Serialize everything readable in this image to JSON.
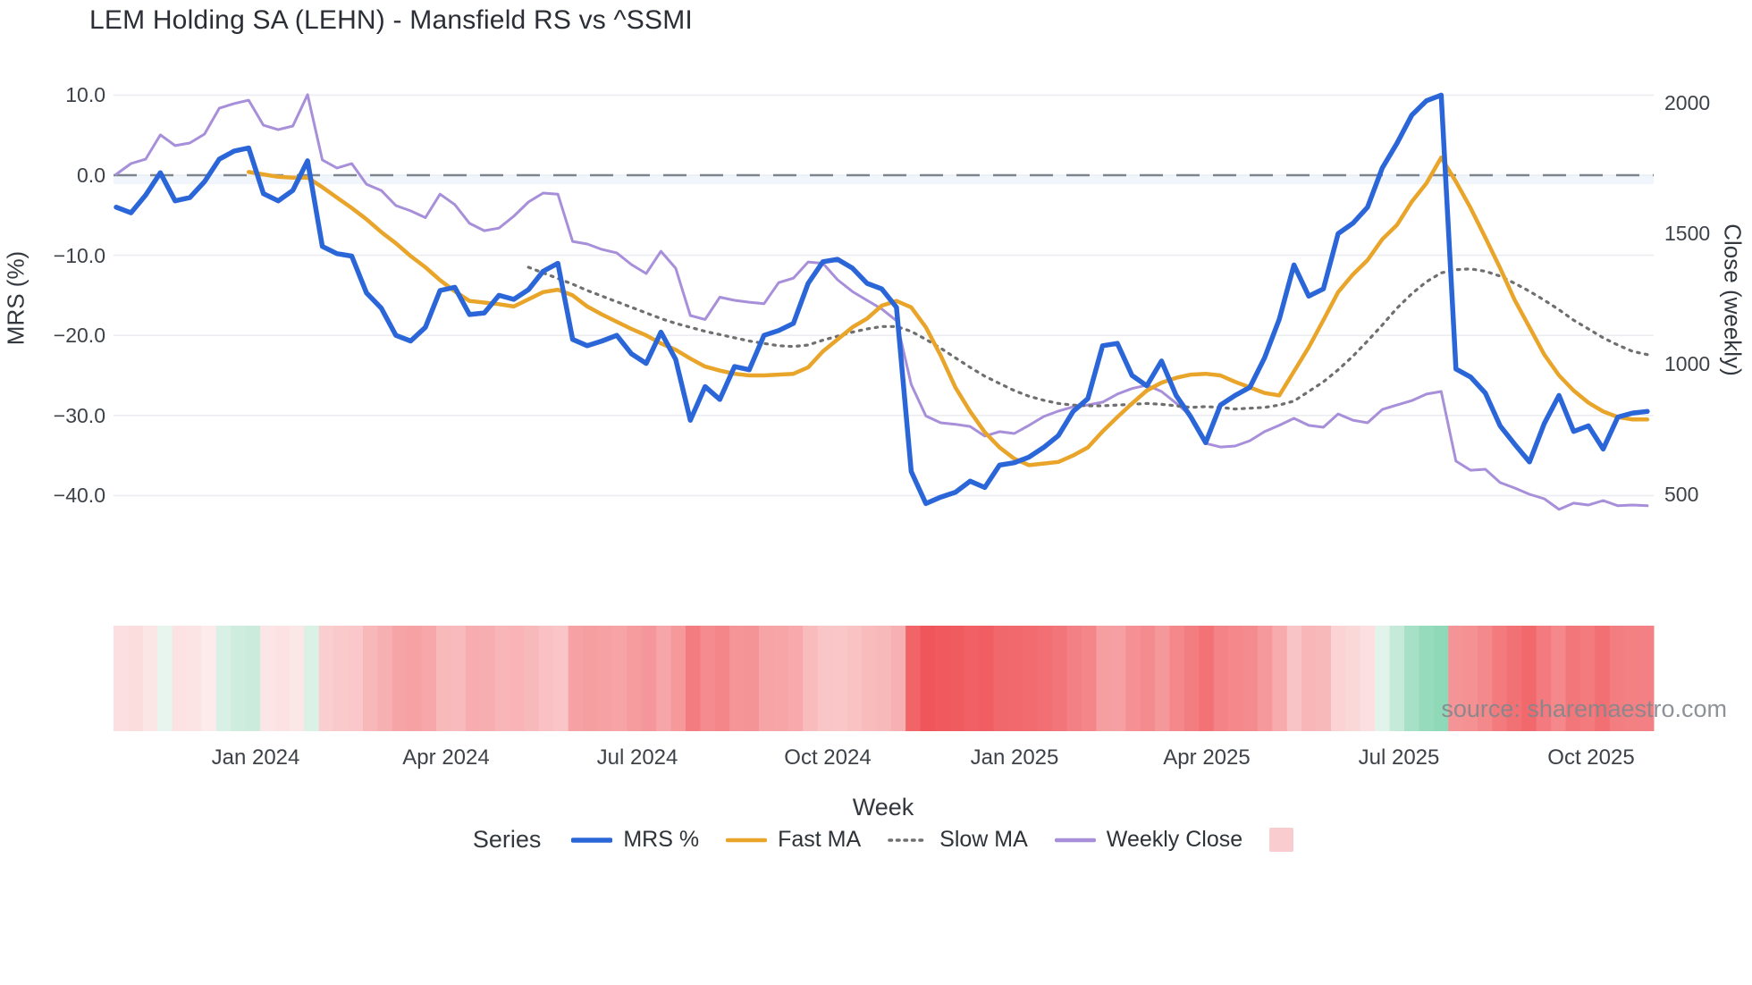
{
  "title": "LEM Holding SA (LEHN) - Mansfield RS vs ^SSMI",
  "watermark": "source: sharemaestro.com",
  "axes": {
    "left_title": "MRS (%)",
    "right_title": "Close (weekly)",
    "x_title": "Week",
    "left_tick_labels": [
      "10.0",
      "0.0",
      "−10.0",
      "−20.0",
      "−30.0",
      "−40.0"
    ],
    "right_tick_labels": [
      "2000",
      "1500",
      "1000",
      "500"
    ]
  },
  "legend": {
    "title": "Series",
    "items": [
      {
        "label": "MRS %",
        "color": "#2b66d9",
        "style": "solid"
      },
      {
        "label": "Fast MA",
        "color": "#e9a42a",
        "style": "solid"
      },
      {
        "label": "Slow MA",
        "color": "#6f6f6f",
        "style": "dotted"
      },
      {
        "label": "Weekly Close",
        "color": "#a78fd9",
        "style": "solid"
      },
      {
        "label": "",
        "color": "#f9cdd0",
        "style": "swatch"
      }
    ]
  },
  "chart_data": {
    "type": "line+heatmap",
    "x_unit": "weekly",
    "weeks": 105,
    "x_ticks": [
      {
        "label": "Jan 2024",
        "week": 9.45
      },
      {
        "label": "Apr 2024",
        "week": 22.4
      },
      {
        "label": "Jul 2024",
        "week": 35.4
      },
      {
        "label": "Oct 2024",
        "week": 48.3
      },
      {
        "label": "Jan 2025",
        "week": 61.05
      },
      {
        "label": "Apr 2025",
        "week": 74.1
      },
      {
        "label": "Jul 2025",
        "week": 87.15
      },
      {
        "label": "Oct 2025",
        "week": 100.2
      }
    ],
    "y_left": {
      "label": "MRS (%)",
      "ticks": [
        10,
        0,
        -10,
        -20,
        -30,
        -40
      ],
      "zero_line": true
    },
    "y_right": {
      "label": "Close (weekly)",
      "ticks": [
        2000,
        1500,
        1000,
        500
      ]
    },
    "grid": "horizontal-only",
    "legend_position": "bottom-center",
    "series": [
      {
        "name": "MRS %",
        "axis": "left",
        "color": "#2b66d9",
        "style": "solid",
        "values": [
          -4.0,
          -4.7,
          -2.5,
          0.3,
          -3.2,
          -2.8,
          -0.8,
          2.0,
          3.0,
          3.4,
          -2.3,
          -3.2,
          -1.9,
          1.8,
          -8.9,
          -9.8,
          -10.1,
          -14.7,
          -16.6,
          -20.0,
          -20.7,
          -19.0,
          -14.4,
          -14.0,
          -17.4,
          -17.2,
          -15.0,
          -15.5,
          -14.3,
          -12.0,
          -11.0,
          -20.5,
          -21.3,
          -20.7,
          -20.0,
          -22.3,
          -23.5,
          -19.6,
          -23.0,
          -30.6,
          -26.4,
          -28.0,
          -23.9,
          -24.3,
          -20.0,
          -19.4,
          -18.5,
          -13.5,
          -10.8,
          -10.5,
          -11.6,
          -13.5,
          -14.2,
          -16.5,
          -37.0,
          -41.0,
          -40.2,
          -39.6,
          -38.2,
          -39.0,
          -36.2,
          -35.9,
          -35.2,
          -34.0,
          -32.5,
          -29.5,
          -27.9,
          -21.3,
          -21.0,
          -25.0,
          -26.3,
          -23.2,
          -27.5,
          -30.2,
          -33.4,
          -28.7,
          -27.5,
          -26.5,
          -22.8,
          -18.0,
          -11.2,
          -15.1,
          -14.2,
          -7.3,
          -6.0,
          -4.0,
          0.9,
          4.0,
          7.5,
          9.3,
          10.0,
          -24.2,
          -25.2,
          -27.2,
          -31.3,
          -33.6,
          -35.8,
          -31.0,
          -27.5,
          -32.0,
          -31.3,
          -34.2,
          -30.2,
          -29.7,
          -29.5
        ]
      },
      {
        "name": "Fast MA",
        "axis": "left",
        "color": "#e9a42a",
        "style": "solid",
        "values": [
          null,
          null,
          null,
          null,
          null,
          null,
          null,
          null,
          null,
          0.4,
          0.1,
          -0.2,
          -0.3,
          -0.3,
          -1.5,
          -2.8,
          -4.1,
          -5.5,
          -7.1,
          -8.5,
          -10.1,
          -11.5,
          -13.1,
          -14.5,
          -15.7,
          -15.9,
          -16.1,
          -16.4,
          -15.5,
          -14.6,
          -14.3,
          -15.0,
          -16.4,
          -17.4,
          -18.3,
          -19.2,
          -20.0,
          -21.0,
          -21.8,
          -22.9,
          -23.9,
          -24.4,
          -24.8,
          -25.0,
          -25.0,
          -24.9,
          -24.8,
          -24.0,
          -22.0,
          -20.5,
          -19.0,
          -17.9,
          -16.3,
          -15.7,
          -16.5,
          -19.0,
          -22.5,
          -26.5,
          -29.5,
          -32.1,
          -34.0,
          -35.4,
          -36.2,
          -36.0,
          -35.8,
          -35.0,
          -34.0,
          -32.0,
          -30.2,
          -28.5,
          -26.9,
          -25.9,
          -25.3,
          -24.9,
          -24.8,
          -25.0,
          -25.8,
          -26.5,
          -27.2,
          -27.5,
          -24.5,
          -21.5,
          -18.1,
          -14.6,
          -12.4,
          -10.6,
          -8.0,
          -6.2,
          -3.3,
          -1.0,
          2.2,
          -0.8,
          -4.1,
          -7.8,
          -11.6,
          -15.6,
          -19.0,
          -22.4,
          -25.0,
          -26.9,
          -28.4,
          -29.5,
          -30.2,
          -30.5,
          -30.5
        ]
      },
      {
        "name": "Slow MA",
        "axis": "left",
        "color": "#6f6f6f",
        "style": "dotted",
        "values": [
          null,
          null,
          null,
          null,
          null,
          null,
          null,
          null,
          null,
          null,
          null,
          null,
          null,
          null,
          null,
          null,
          null,
          null,
          null,
          null,
          null,
          null,
          null,
          null,
          null,
          null,
          null,
          null,
          -11.5,
          -12.2,
          -12.9,
          -13.6,
          -14.4,
          -15.1,
          -15.8,
          -16.5,
          -17.2,
          -17.9,
          -18.5,
          -19.0,
          -19.5,
          -19.9,
          -20.3,
          -20.7,
          -21.0,
          -21.3,
          -21.4,
          -21.2,
          -20.6,
          -20.1,
          -19.6,
          -19.2,
          -18.9,
          -18.9,
          -19.5,
          -20.5,
          -21.6,
          -22.8,
          -24.0,
          -25.1,
          -26.0,
          -26.9,
          -27.6,
          -28.1,
          -28.5,
          -28.7,
          -28.8,
          -28.8,
          -28.7,
          -28.6,
          -28.5,
          -28.6,
          -28.8,
          -29.0,
          -28.9,
          -29.0,
          -29.2,
          -29.1,
          -29.0,
          -28.7,
          -28.2,
          -27.0,
          -25.8,
          -24.3,
          -22.6,
          -20.7,
          -18.7,
          -16.6,
          -14.8,
          -13.3,
          -12.2,
          -11.8,
          -11.7,
          -12.0,
          -12.6,
          -13.5,
          -14.5,
          -15.6,
          -16.8,
          -18.1,
          -19.2,
          -20.3,
          -21.2,
          -22.0,
          -22.4
        ]
      },
      {
        "name": "Weekly Close",
        "axis": "right",
        "color": "#a78fd9",
        "style": "solid",
        "values": [
          1726,
          1767,
          1784,
          1877,
          1836,
          1846,
          1880,
          1979,
          1997,
          2010,
          1914,
          1897,
          1911,
          2031,
          1781,
          1750,
          1767,
          1688,
          1664,
          1606,
          1586,
          1560,
          1650,
          1610,
          1538,
          1510,
          1520,
          1565,
          1620,
          1654,
          1650,
          1469,
          1459,
          1438,
          1425,
          1380,
          1346,
          1431,
          1366,
          1185,
          1170,
          1255,
          1243,
          1236,
          1230,
          1311,
          1328,
          1390,
          1385,
          1322,
          1277,
          1243,
          1210,
          1165,
          921,
          800,
          774,
          768,
          760,
          723,
          740,
          733,
          764,
          798,
          819,
          835,
          842,
          853,
          884,
          905,
          918,
          894,
          849,
          800,
          695,
          681,
          685,
          705,
          740,
          764,
          791,
          764,
          757,
          808,
          784,
          774,
          825,
          842,
          859,
          884,
          894,
          627,
          592,
          596,
          545,
          524,
          500,
          483,
          442,
          466,
          459,
          476,
          456,
          459,
          456
        ]
      }
    ],
    "heatmap_strip": {
      "maps_series": "MRS %",
      "negative_color": "#ef5257",
      "neutral_color": "#fdeeee",
      "positive_color": "#8fd9b8",
      "positive_neutral_color": "#eaf6f0",
      "negative_scale_max": 42,
      "positive_scale_max": 10
    }
  }
}
